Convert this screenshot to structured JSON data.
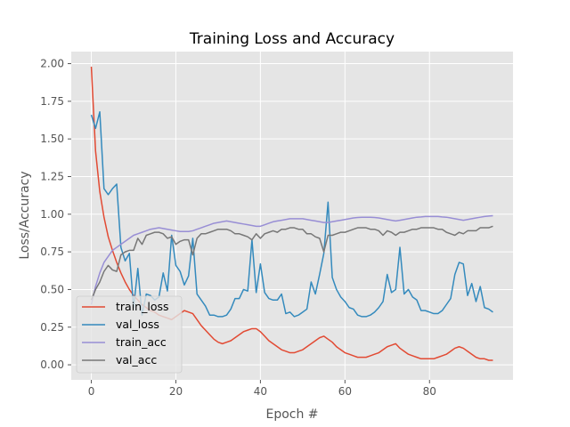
{
  "chart_data": {
    "type": "line",
    "title": "Training Loss and Accuracy",
    "xlabel": "Epoch #",
    "ylabel": "Loss/Accuracy",
    "xlim": [
      -4.75,
      99.75
    ],
    "ylim": [
      -0.1,
      2.08
    ],
    "xticks": [
      0,
      20,
      40,
      60,
      80
    ],
    "xtick_labels": [
      "0",
      "20",
      "40",
      "60",
      "80"
    ],
    "yticks": [
      0.0,
      0.25,
      0.5,
      0.75,
      1.0,
      1.25,
      1.5,
      1.75,
      2.0
    ],
    "ytick_labels": [
      "0.00",
      "0.25",
      "0.50",
      "0.75",
      "1.00",
      "1.25",
      "1.50",
      "1.75",
      "2.00"
    ],
    "grid": true,
    "legend_position": "bottom-left",
    "background": "#E5E5E5",
    "series": [
      {
        "name": "train_loss",
        "color": "#E24A33",
        "x": [
          0,
          1,
          2,
          3,
          4,
          5,
          6,
          7,
          8,
          9,
          10,
          11,
          12,
          13,
          14,
          15,
          16,
          17,
          18,
          19,
          20,
          21,
          22,
          23,
          24,
          25,
          26,
          27,
          28,
          29,
          30,
          31,
          32,
          33,
          34,
          35,
          36,
          37,
          38,
          39,
          40,
          41,
          42,
          43,
          44,
          45,
          46,
          47,
          48,
          49,
          50,
          51,
          52,
          53,
          54,
          55,
          56,
          57,
          58,
          59,
          60,
          61,
          62,
          63,
          64,
          65,
          66,
          67,
          68,
          69,
          70,
          71,
          72,
          73,
          74,
          75,
          76,
          77,
          78,
          79,
          80,
          81,
          82,
          83,
          84,
          85,
          86,
          87,
          88,
          89,
          90,
          91,
          92,
          93,
          94,
          95
        ],
        "values": [
          1.98,
          1.42,
          1.15,
          0.98,
          0.85,
          0.76,
          0.68,
          0.61,
          0.55,
          0.5,
          0.46,
          0.43,
          0.4,
          0.38,
          0.36,
          0.35,
          0.33,
          0.32,
          0.31,
          0.3,
          0.32,
          0.34,
          0.36,
          0.35,
          0.34,
          0.3,
          0.26,
          0.23,
          0.2,
          0.17,
          0.15,
          0.14,
          0.15,
          0.16,
          0.18,
          0.2,
          0.22,
          0.23,
          0.24,
          0.24,
          0.22,
          0.19,
          0.16,
          0.14,
          0.12,
          0.1,
          0.09,
          0.08,
          0.08,
          0.09,
          0.1,
          0.12,
          0.14,
          0.16,
          0.18,
          0.19,
          0.17,
          0.15,
          0.12,
          0.1,
          0.08,
          0.07,
          0.06,
          0.05,
          0.05,
          0.05,
          0.06,
          0.07,
          0.08,
          0.1,
          0.12,
          0.13,
          0.14,
          0.11,
          0.09,
          0.07,
          0.06,
          0.05,
          0.04,
          0.04,
          0.04,
          0.04,
          0.05,
          0.06,
          0.07,
          0.09,
          0.11,
          0.12,
          0.11,
          0.09,
          0.07,
          0.05,
          0.04,
          0.04,
          0.03,
          0.03
        ]
      },
      {
        "name": "val_loss",
        "color": "#348ABD",
        "x": [
          0,
          1,
          2,
          3,
          4,
          5,
          6,
          7,
          8,
          9,
          10,
          11,
          12,
          13,
          14,
          15,
          16,
          17,
          18,
          19,
          20,
          21,
          22,
          23,
          24,
          25,
          26,
          27,
          28,
          29,
          30,
          31,
          32,
          33,
          34,
          35,
          36,
          37,
          38,
          39,
          40,
          41,
          42,
          43,
          44,
          45,
          46,
          47,
          48,
          49,
          50,
          51,
          52,
          53,
          54,
          55,
          56,
          57,
          58,
          59,
          60,
          61,
          62,
          63,
          64,
          65,
          66,
          67,
          68,
          69,
          70,
          71,
          72,
          73,
          74,
          75,
          76,
          77,
          78,
          79,
          80,
          81,
          82,
          83,
          84,
          85,
          86,
          87,
          88,
          89,
          90,
          91,
          92,
          93,
          94,
          95
        ],
        "values": [
          1.66,
          1.57,
          1.68,
          1.17,
          1.13,
          1.17,
          1.2,
          0.78,
          0.69,
          0.74,
          0.38,
          0.64,
          0.33,
          0.47,
          0.46,
          0.43,
          0.45,
          0.61,
          0.49,
          0.86,
          0.66,
          0.62,
          0.53,
          0.59,
          0.84,
          0.47,
          0.43,
          0.39,
          0.33,
          0.33,
          0.32,
          0.32,
          0.33,
          0.37,
          0.44,
          0.44,
          0.5,
          0.49,
          0.83,
          0.48,
          0.67,
          0.48,
          0.44,
          0.43,
          0.43,
          0.47,
          0.34,
          0.35,
          0.32,
          0.33,
          0.35,
          0.37,
          0.55,
          0.47,
          0.6,
          0.74,
          1.08,
          0.58,
          0.5,
          0.45,
          0.42,
          0.38,
          0.37,
          0.33,
          0.32,
          0.32,
          0.33,
          0.35,
          0.38,
          0.42,
          0.6,
          0.48,
          0.5,
          0.78,
          0.47,
          0.5,
          0.45,
          0.43,
          0.36,
          0.36,
          0.35,
          0.34,
          0.34,
          0.36,
          0.4,
          0.44,
          0.6,
          0.68,
          0.67,
          0.46,
          0.54,
          0.42,
          0.52,
          0.38,
          0.37,
          0.35
        ]
      },
      {
        "name": "train_acc",
        "color": "#988ED5",
        "x": [
          0,
          1,
          2,
          3,
          4,
          5,
          6,
          7,
          8,
          9,
          10,
          11,
          12,
          13,
          14,
          15,
          16,
          17,
          18,
          19,
          20,
          21,
          22,
          23,
          24,
          25,
          26,
          27,
          28,
          29,
          30,
          31,
          32,
          33,
          34,
          35,
          36,
          37,
          38,
          39,
          40,
          41,
          42,
          43,
          44,
          45,
          46,
          47,
          48,
          49,
          50,
          51,
          52,
          53,
          54,
          55,
          56,
          57,
          58,
          59,
          60,
          61,
          62,
          63,
          64,
          65,
          66,
          67,
          68,
          69,
          70,
          71,
          72,
          73,
          74,
          75,
          76,
          77,
          78,
          79,
          80,
          81,
          82,
          83,
          84,
          85,
          86,
          87,
          88,
          89,
          90,
          91,
          92,
          93,
          94,
          95
        ],
        "values": [
          0.4,
          0.52,
          0.61,
          0.68,
          0.72,
          0.76,
          0.78,
          0.8,
          0.82,
          0.84,
          0.86,
          0.87,
          0.88,
          0.89,
          0.9,
          0.905,
          0.91,
          0.905,
          0.9,
          0.895,
          0.89,
          0.885,
          0.885,
          0.885,
          0.89,
          0.9,
          0.91,
          0.92,
          0.93,
          0.94,
          0.945,
          0.95,
          0.955,
          0.95,
          0.945,
          0.94,
          0.935,
          0.93,
          0.925,
          0.92,
          0.92,
          0.93,
          0.94,
          0.95,
          0.955,
          0.96,
          0.965,
          0.97,
          0.97,
          0.97,
          0.97,
          0.965,
          0.96,
          0.955,
          0.95,
          0.945,
          0.945,
          0.95,
          0.955,
          0.96,
          0.965,
          0.97,
          0.975,
          0.978,
          0.98,
          0.98,
          0.98,
          0.978,
          0.975,
          0.97,
          0.965,
          0.96,
          0.955,
          0.96,
          0.965,
          0.97,
          0.975,
          0.98,
          0.982,
          0.985,
          0.985,
          0.985,
          0.985,
          0.982,
          0.98,
          0.975,
          0.97,
          0.965,
          0.96,
          0.965,
          0.97,
          0.975,
          0.98,
          0.985,
          0.988,
          0.99
        ]
      },
      {
        "name": "val_acc",
        "color": "#777777",
        "x": [
          0,
          1,
          2,
          3,
          4,
          5,
          6,
          7,
          8,
          9,
          10,
          11,
          12,
          13,
          14,
          15,
          16,
          17,
          18,
          19,
          20,
          21,
          22,
          23,
          24,
          25,
          26,
          27,
          28,
          29,
          30,
          31,
          32,
          33,
          34,
          35,
          36,
          37,
          38,
          39,
          40,
          41,
          42,
          43,
          44,
          45,
          46,
          47,
          48,
          49,
          50,
          51,
          52,
          53,
          54,
          55,
          56,
          57,
          58,
          59,
          60,
          61,
          62,
          63,
          64,
          65,
          66,
          67,
          68,
          69,
          70,
          71,
          72,
          73,
          74,
          75,
          76,
          77,
          78,
          79,
          80,
          81,
          82,
          83,
          84,
          85,
          86,
          87,
          88,
          89,
          90,
          91,
          92,
          93,
          94,
          95
        ],
        "values": [
          0.43,
          0.5,
          0.55,
          0.62,
          0.66,
          0.63,
          0.62,
          0.73,
          0.75,
          0.76,
          0.76,
          0.84,
          0.8,
          0.86,
          0.87,
          0.88,
          0.88,
          0.87,
          0.84,
          0.85,
          0.8,
          0.82,
          0.83,
          0.83,
          0.73,
          0.84,
          0.87,
          0.87,
          0.88,
          0.89,
          0.9,
          0.9,
          0.9,
          0.89,
          0.87,
          0.87,
          0.86,
          0.85,
          0.83,
          0.87,
          0.84,
          0.87,
          0.88,
          0.89,
          0.88,
          0.9,
          0.9,
          0.91,
          0.91,
          0.9,
          0.9,
          0.87,
          0.87,
          0.85,
          0.84,
          0.75,
          0.86,
          0.86,
          0.87,
          0.88,
          0.88,
          0.89,
          0.9,
          0.91,
          0.91,
          0.91,
          0.9,
          0.9,
          0.89,
          0.86,
          0.89,
          0.88,
          0.86,
          0.88,
          0.88,
          0.89,
          0.9,
          0.9,
          0.91,
          0.91,
          0.91,
          0.91,
          0.9,
          0.9,
          0.88,
          0.87,
          0.86,
          0.88,
          0.87,
          0.89,
          0.89,
          0.89,
          0.91,
          0.91,
          0.91,
          0.92
        ]
      }
    ]
  }
}
